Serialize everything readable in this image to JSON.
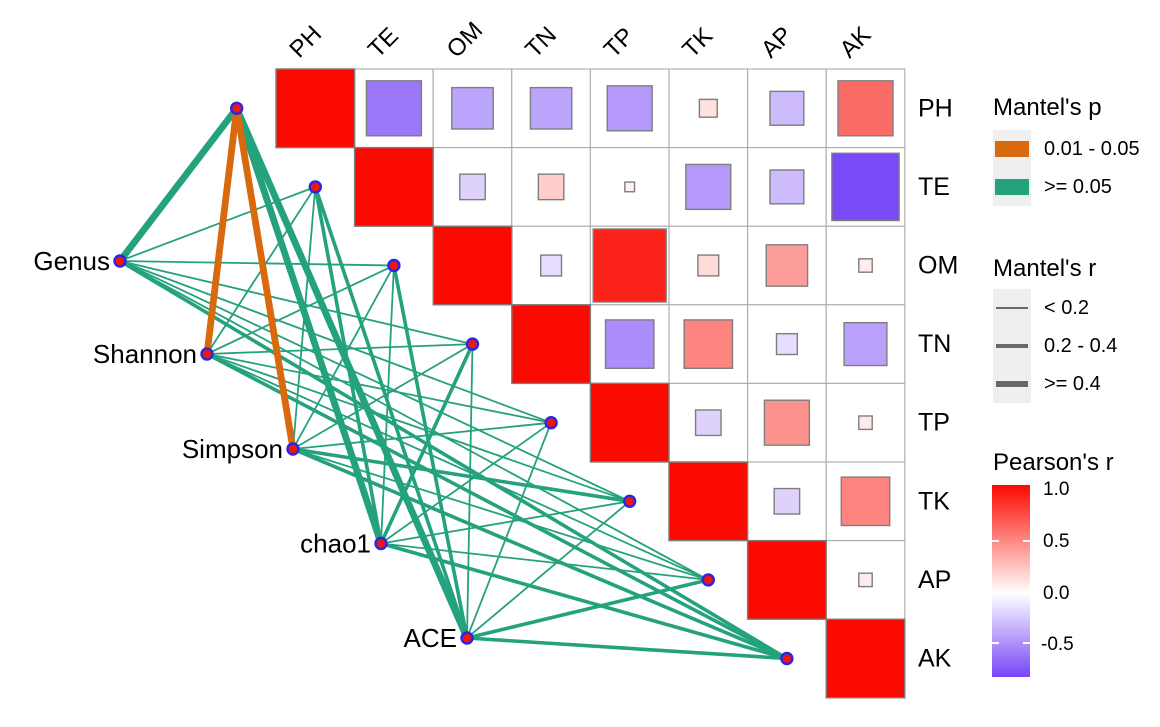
{
  "chart_data": {
    "type": "heatmap",
    "subtype": "mantel-correlation-network",
    "variables": [
      "PH",
      "TE",
      "OM",
      "TN",
      "TP",
      "TK",
      "AP",
      "AK"
    ],
    "indices": [
      "Genus",
      "Shannon",
      "Simpson",
      "chao1",
      "ACE"
    ],
    "pearson_matrix_upper": {
      "PH": [
        1,
        -0.6,
        -0.4,
        -0.4,
        -0.45,
        0.12,
        -0.3,
        0.6
      ],
      "TE": [
        1,
        -0.2,
        0.2,
        0.05,
        -0.45,
        -0.3,
        -0.8
      ],
      "OM": [
        1,
        -0.15,
        0.9,
        0.15,
        0.4,
        0.08
      ],
      "TN": [
        1,
        -0.5,
        0.5,
        -0.15,
        -0.42
      ],
      "TP": [
        1,
        -0.2,
        0.45,
        0.08
      ],
      "TK": [
        1,
        -0.2,
        0.5
      ],
      "AP": [
        1,
        0.08
      ],
      "AK": [
        1
      ]
    },
    "mantel_edges": [
      {
        "from": "Genus",
        "to": "PH",
        "r": ">= 0.4",
        "p": ">= 0.05"
      },
      {
        "from": "Genus",
        "to": "TE",
        "r": "< 0.2",
        "p": ">= 0.05"
      },
      {
        "from": "Genus",
        "to": "OM",
        "r": "< 0.2",
        "p": ">= 0.05"
      },
      {
        "from": "Genus",
        "to": "TN",
        "r": "< 0.2",
        "p": ">= 0.05"
      },
      {
        "from": "Genus",
        "to": "TP",
        "r": "< 0.2",
        "p": ">= 0.05"
      },
      {
        "from": "Genus",
        "to": "TK",
        "r": "< 0.2",
        "p": ">= 0.05"
      },
      {
        "from": "Genus",
        "to": "AP",
        "r": "< 0.2",
        "p": ">= 0.05"
      },
      {
        "from": "Genus",
        "to": "AK",
        "r": "0.2 - 0.4",
        "p": ">= 0.05"
      },
      {
        "from": "Shannon",
        "to": "PH",
        "r": ">= 0.4",
        "p": "0.01 - 0.05"
      },
      {
        "from": "Shannon",
        "to": "TE",
        "r": "< 0.2",
        "p": ">= 0.05"
      },
      {
        "from": "Shannon",
        "to": "OM",
        "r": "< 0.2",
        "p": ">= 0.05"
      },
      {
        "from": "Shannon",
        "to": "TN",
        "r": "< 0.2",
        "p": ">= 0.05"
      },
      {
        "from": "Shannon",
        "to": "TP",
        "r": "< 0.2",
        "p": ">= 0.05"
      },
      {
        "from": "Shannon",
        "to": "TK",
        "r": "< 0.2",
        "p": ">= 0.05"
      },
      {
        "from": "Shannon",
        "to": "AP",
        "r": "< 0.2",
        "p": ">= 0.05"
      },
      {
        "from": "Shannon",
        "to": "AK",
        "r": "0.2 - 0.4",
        "p": ">= 0.05"
      },
      {
        "from": "Simpson",
        "to": "PH",
        "r": ">= 0.4",
        "p": "0.01 - 0.05"
      },
      {
        "from": "Simpson",
        "to": "TE",
        "r": "< 0.2",
        "p": ">= 0.05"
      },
      {
        "from": "Simpson",
        "to": "OM",
        "r": "< 0.2",
        "p": ">= 0.05"
      },
      {
        "from": "Simpson",
        "to": "TN",
        "r": "< 0.2",
        "p": ">= 0.05"
      },
      {
        "from": "Simpson",
        "to": "TP",
        "r": "< 0.2",
        "p": ">= 0.05"
      },
      {
        "from": "Simpson",
        "to": "TK",
        "r": "0.2 - 0.4",
        "p": ">= 0.05"
      },
      {
        "from": "Simpson",
        "to": "AP",
        "r": "< 0.2",
        "p": ">= 0.05"
      },
      {
        "from": "Simpson",
        "to": "AK",
        "r": "0.2 - 0.4",
        "p": ">= 0.05"
      },
      {
        "from": "chao1",
        "to": "PH",
        "r": ">= 0.4",
        "p": ">= 0.05"
      },
      {
        "from": "chao1",
        "to": "TE",
        "r": "0.2 - 0.4",
        "p": ">= 0.05"
      },
      {
        "from": "chao1",
        "to": "OM",
        "r": "< 0.2",
        "p": ">= 0.05"
      },
      {
        "from": "chao1",
        "to": "TN",
        "r": "0.2 - 0.4",
        "p": ">= 0.05"
      },
      {
        "from": "chao1",
        "to": "TP",
        "r": "< 0.2",
        "p": ">= 0.05"
      },
      {
        "from": "chao1",
        "to": "TK",
        "r": "< 0.2",
        "p": ">= 0.05"
      },
      {
        "from": "chao1",
        "to": "AP",
        "r": "< 0.2",
        "p": ">= 0.05"
      },
      {
        "from": "chao1",
        "to": "AK",
        "r": "0.2 - 0.4",
        "p": ">= 0.05"
      },
      {
        "from": "ACE",
        "to": "PH",
        "r": ">= 0.4",
        "p": ">= 0.05"
      },
      {
        "from": "ACE",
        "to": "TE",
        "r": "0.2 - 0.4",
        "p": ">= 0.05"
      },
      {
        "from": "ACE",
        "to": "OM",
        "r": "0.2 - 0.4",
        "p": ">= 0.05"
      },
      {
        "from": "ACE",
        "to": "TN",
        "r": "< 0.2",
        "p": ">= 0.05"
      },
      {
        "from": "ACE",
        "to": "TP",
        "r": "< 0.2",
        "p": ">= 0.05"
      },
      {
        "from": "ACE",
        "to": "TK",
        "r": "< 0.2",
        "p": ">= 0.05"
      },
      {
        "from": "ACE",
        "to": "AP",
        "r": "0.2 - 0.4",
        "p": ">= 0.05"
      },
      {
        "from": "ACE",
        "to": "AK",
        "r": "0.2 - 0.4",
        "p": ">= 0.05"
      }
    ]
  },
  "legends": {
    "mantel_p": {
      "title": "Mantel's p",
      "items": [
        {
          "label": "0.01 - 0.05",
          "color": "#D8690D"
        },
        {
          "label": ">= 0.05",
          "color": "#24A27D"
        }
      ]
    },
    "mantel_r": {
      "title": "Mantel's r",
      "items": [
        {
          "label": "< 0.2"
        },
        {
          "label": "0.2 - 0.4"
        },
        {
          "label": ">= 0.4"
        }
      ]
    },
    "pearson": {
      "title": "Pearson's r",
      "ticks": [
        "1.0",
        "0.5",
        "0.0",
        "-0.5"
      ]
    }
  },
  "colors": {
    "mantel_sig": "#D8690D",
    "mantel_ns": "#24A27D",
    "pearson_pos": "#FA0A00",
    "pearson_neg": "#7646F8",
    "node_fill": "#F2150C",
    "node_ring": "#2727E8",
    "grid": "#ABABAB",
    "square_stroke": "#7E7E7E",
    "legend_line": "#696969",
    "key_bg": "#EFEFEF"
  }
}
